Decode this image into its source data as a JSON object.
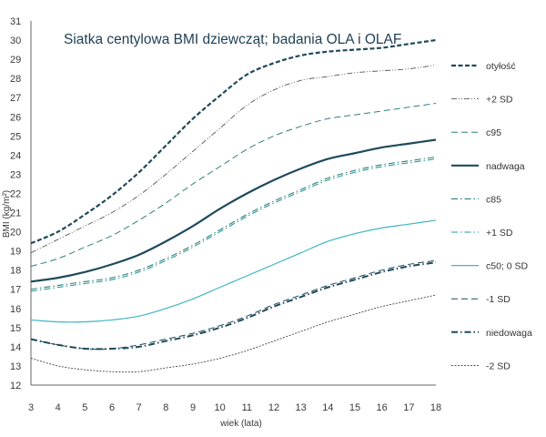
{
  "chart_data": {
    "type": "line",
    "title": "Siatka centylowa BMI dziewcząt; badania OLA i OLAF",
    "xlabel": "wiek (lata)",
    "ylabel": "BMI (kg/m²)",
    "xlim": [
      3,
      18
    ],
    "ylim": [
      12,
      31
    ],
    "x_ticks": [
      "3",
      "4",
      "5",
      "6",
      "7",
      "8",
      "9",
      "10",
      "11",
      "12",
      "13",
      "14",
      "15",
      "16",
      "17",
      "18"
    ],
    "y_ticks": [
      "12",
      "13",
      "14",
      "15",
      "16",
      "17",
      "18",
      "19",
      "20",
      "21",
      "22",
      "23",
      "24",
      "25",
      "26",
      "27",
      "28",
      "29",
      "30",
      "31"
    ],
    "grid": false,
    "legend_position": "right",
    "x": [
      3,
      4,
      5,
      6,
      7,
      8,
      9,
      10,
      11,
      12,
      13,
      14,
      15,
      16,
      17,
      18
    ],
    "series": [
      {
        "name": "otyłość",
        "color": "#1f4a5c",
        "style": "dashed-thick",
        "values": [
          19.4,
          20.0,
          20.9,
          21.9,
          23.1,
          24.5,
          25.9,
          27.1,
          28.2,
          28.8,
          29.2,
          29.4,
          29.5,
          29.6,
          29.8,
          30.0
        ]
      },
      {
        "name": "+2 SD",
        "color": "#555555",
        "style": "dashdotdot-thin",
        "values": [
          18.9,
          19.6,
          20.3,
          21.0,
          21.9,
          23.0,
          24.2,
          25.4,
          26.6,
          27.4,
          27.9,
          28.1,
          28.3,
          28.4,
          28.5,
          28.7
        ]
      },
      {
        "name": "c95",
        "color": "#2f7f7a",
        "style": "dashed",
        "values": [
          18.2,
          18.6,
          19.2,
          19.8,
          20.6,
          21.5,
          22.5,
          23.4,
          24.3,
          25.0,
          25.5,
          25.9,
          26.1,
          26.3,
          26.5,
          26.7
        ]
      },
      {
        "name": "nadwaga",
        "color": "#1f4a5c",
        "style": "solid-thick",
        "values": [
          17.4,
          17.6,
          17.9,
          18.3,
          18.8,
          19.5,
          20.3,
          21.2,
          22.0,
          22.7,
          23.3,
          23.8,
          24.1,
          24.4,
          24.6,
          24.8
        ]
      },
      {
        "name": "c85",
        "color": "#2f7f7a",
        "style": "dashdot",
        "values": [
          17.0,
          17.2,
          17.4,
          17.6,
          18.0,
          18.6,
          19.3,
          20.1,
          20.9,
          21.6,
          22.2,
          22.8,
          23.2,
          23.5,
          23.7,
          23.9
        ]
      },
      {
        "name": "+1 SD",
        "color": "#2a9a9a",
        "style": "dashdot",
        "values": [
          16.9,
          17.1,
          17.3,
          17.5,
          17.9,
          18.5,
          19.2,
          20.0,
          20.8,
          21.5,
          22.1,
          22.7,
          23.1,
          23.4,
          23.6,
          23.8
        ]
      },
      {
        "name": "c50; 0 SD",
        "color": "#3fb5c4",
        "style": "solid",
        "values": [
          15.4,
          15.3,
          15.3,
          15.4,
          15.6,
          16.0,
          16.5,
          17.1,
          17.7,
          18.3,
          18.9,
          19.5,
          19.9,
          20.2,
          20.4,
          20.6
        ]
      },
      {
        "name": "-1 SD",
        "color": "#1f4a5c",
        "style": "dashed",
        "values": [
          14.4,
          14.1,
          13.9,
          13.9,
          14.1,
          14.4,
          14.7,
          15.1,
          15.6,
          16.2,
          16.7,
          17.2,
          17.6,
          18.0,
          18.3,
          18.5
        ]
      },
      {
        "name": "niedowaga",
        "color": "#1f4a5c",
        "style": "dashdot-thick",
        "values": [
          14.4,
          14.1,
          13.9,
          13.9,
          14.0,
          14.3,
          14.6,
          15.0,
          15.5,
          16.1,
          16.6,
          17.1,
          17.5,
          17.9,
          18.2,
          18.4
        ]
      },
      {
        "name": "-2 SD",
        "color": "#444444",
        "style": "dotted-thin",
        "values": [
          13.4,
          13.0,
          12.8,
          12.7,
          12.7,
          12.9,
          13.1,
          13.4,
          13.8,
          14.3,
          14.8,
          15.3,
          15.7,
          16.1,
          16.4,
          16.7
        ]
      }
    ]
  }
}
